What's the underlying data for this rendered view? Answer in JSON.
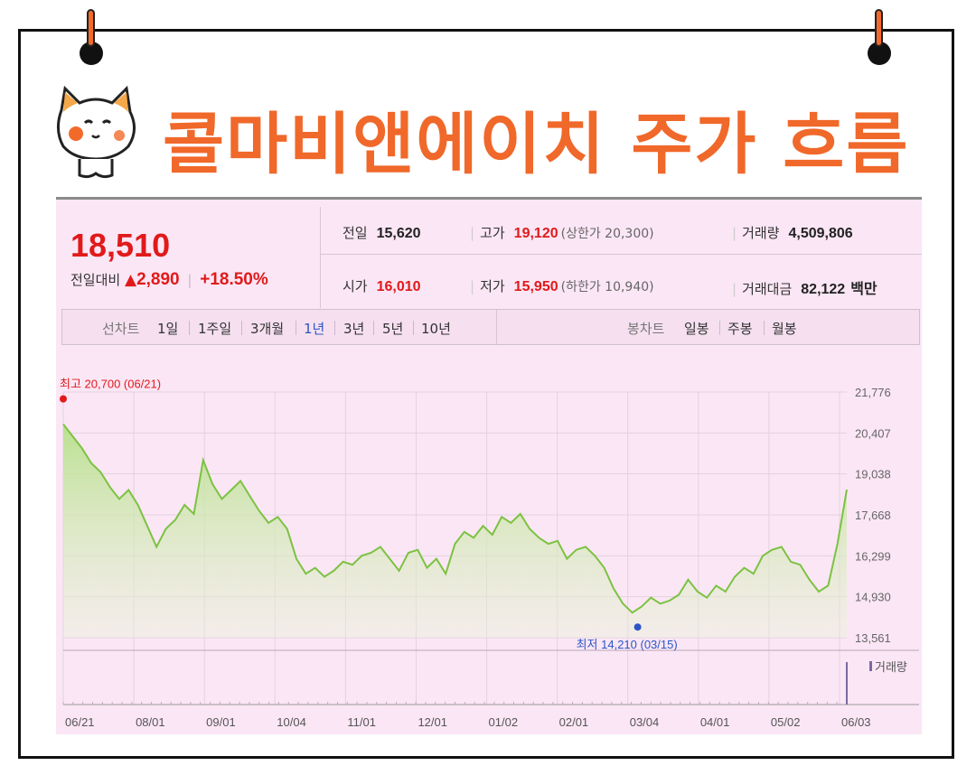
{
  "header": {
    "title": "콜마비앤에이치 주가 흐름"
  },
  "quote": {
    "price": "18,510",
    "change_label": "전일대비",
    "change_amount": "2,890",
    "change_percent": "+18.50%",
    "stats": {
      "prev_close_label": "전일",
      "prev_close": "15,620",
      "high_label": "고가",
      "high": "19,120",
      "upper_limit": "(상한가 20,300)",
      "volume_label": "거래량",
      "volume": "4,509,806",
      "open_label": "시가",
      "open": "16,010",
      "low_label": "저가",
      "low": "15,950",
      "lower_limit": "(하한가 10,940)",
      "amount_label": "거래대금",
      "amount": "82,122",
      "amount_unit": "백만"
    }
  },
  "tabs": {
    "line_chart_label": "선차트",
    "periods": [
      "1일",
      "1주일",
      "3개월",
      "1년",
      "3년",
      "5년",
      "10년"
    ],
    "active_period": "1년",
    "candle_chart_label": "봉차트",
    "candles": [
      "일봉",
      "주봉",
      "월봉"
    ]
  },
  "colors": {
    "up": "#e01a1a",
    "active_tab": "#2a56c6",
    "line": "#7cc242",
    "title_orange": "#f0682a"
  },
  "chart_data": {
    "type": "area",
    "x_ticks": [
      "06/21",
      "08/01",
      "09/01",
      "10/04",
      "11/01",
      "12/01",
      "01/02",
      "02/01",
      "03/04",
      "04/01",
      "05/02",
      "06/03"
    ],
    "y_ticks": [
      21776,
      20407,
      19038,
      17668,
      16299,
      14930,
      13561
    ],
    "ylim": [
      13561,
      21776
    ],
    "grid": true,
    "max_annotation": "최고 20,700 (06/21)",
    "min_annotation": "최저 14,210 (03/15)",
    "volume_legend": "거래량",
    "series": [
      {
        "values": [
          20700,
          20300,
          19900,
          19400,
          19100,
          18600,
          18200,
          18500,
          18000,
          17300,
          16600,
          17200,
          17500,
          18000,
          17700,
          19500,
          18700,
          18200,
          18500,
          18800,
          18300,
          17800,
          17400,
          17600,
          17200,
          16200,
          15700,
          15900,
          15600,
          15800,
          16100,
          16000,
          16300,
          16400,
          16600,
          16200,
          15800,
          16400,
          16500,
          15900,
          16200,
          15700,
          16700,
          17100,
          16900,
          17300,
          17000,
          17600,
          17400,
          17700,
          17200,
          16900,
          16700,
          16800,
          16200,
          16500,
          16600,
          16300,
          15900,
          15200,
          14700,
          14400,
          14600,
          14900,
          14700,
          14800,
          15000,
          15500,
          15100,
          14900,
          15300,
          15100,
          15600,
          15900,
          15700,
          16300,
          16500,
          16600,
          16100,
          16000,
          15500,
          15100,
          15300,
          16700,
          18510
        ]
      }
    ]
  }
}
